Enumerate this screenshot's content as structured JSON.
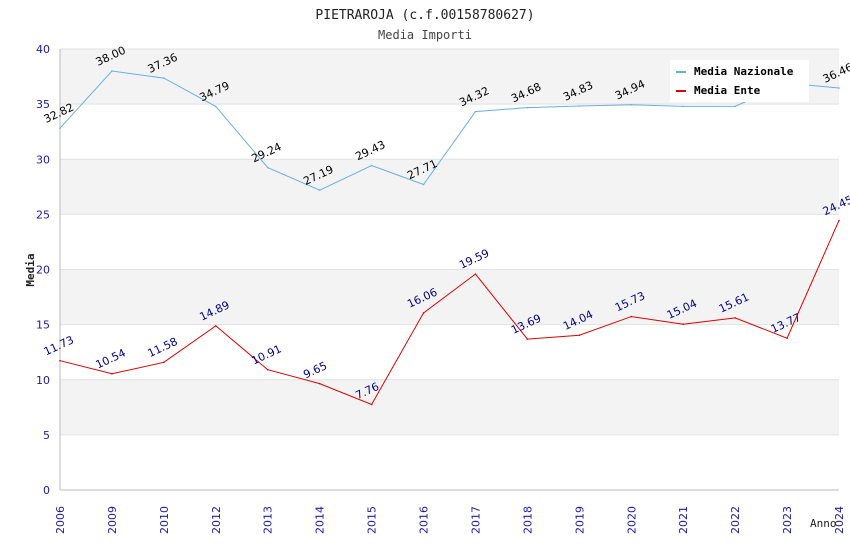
{
  "chart_data": {
    "type": "line",
    "title": "PIETRAROJA (c.f.00158780627)",
    "subtitle": "Media Importi",
    "xlabel": "Anno",
    "ylabel": "Media",
    "ylim": [
      0,
      40
    ],
    "yticks": [
      0,
      5,
      10,
      15,
      20,
      25,
      30,
      35,
      40
    ],
    "categories": [
      "2006",
      "2009",
      "2010",
      "2012",
      "2013",
      "2014",
      "2015",
      "2016",
      "2017",
      "2018",
      "2019",
      "2020",
      "2021",
      "2022",
      "2023",
      "2024"
    ],
    "series": [
      {
        "name": "Media Nazionale",
        "color": "#6aaee8",
        "label_color": "#000000",
        "values": [
          32.82,
          38.0,
          37.36,
          34.79,
          29.24,
          27.19,
          29.43,
          27.71,
          34.32,
          34.68,
          34.83,
          34.94,
          34.8,
          34.8,
          36.9,
          36.46
        ],
        "labels": [
          "32.82",
          "38.00",
          "37.36",
          "34.79",
          "29.24",
          "27.19",
          "29.43",
          "27.71",
          "34.32",
          "34.68",
          "34.83",
          "34.94",
          null,
          null,
          null,
          "36.46"
        ]
      },
      {
        "name": "Media Ente",
        "color": "#e00000",
        "label_color": "#00008b",
        "values": [
          11.73,
          10.54,
          11.58,
          14.89,
          10.91,
          9.65,
          7.76,
          16.06,
          19.59,
          13.69,
          14.04,
          15.73,
          15.04,
          15.61,
          13.77,
          24.45
        ],
        "labels": [
          "11.73",
          "10.54",
          "11.58",
          "14.89",
          "10.91",
          "9.65",
          "7.76",
          "16.06",
          "19.59",
          "13.69",
          "14.04",
          "15.73",
          "15.04",
          "15.61",
          "13.77",
          "24.45"
        ]
      }
    ],
    "legend_position": "top-right",
    "grid": true
  }
}
